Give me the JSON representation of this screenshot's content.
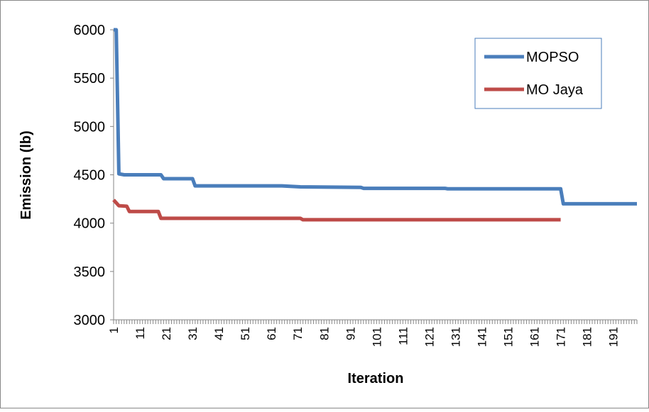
{
  "chart_data": {
    "type": "line",
    "title": "",
    "xlabel": "Iteration",
    "ylabel": "Emission (lb)",
    "ylim": [
      3000,
      6000
    ],
    "y_ticks": [
      3000,
      3500,
      4000,
      4500,
      5000,
      5500,
      6000
    ],
    "y_tick_labels": [
      "3000",
      "3500",
      "4000",
      "4500",
      "5000",
      "5500",
      "6000"
    ],
    "xlim": [
      1,
      200
    ],
    "x_tick_labels": [
      "1",
      "11",
      "21",
      "31",
      "41",
      "51",
      "61",
      "71",
      "81",
      "91",
      "101",
      "111",
      "121",
      "131",
      "141",
      "151",
      "161",
      "171",
      "181",
      "191"
    ],
    "legend": {
      "position": "top-right",
      "entries": [
        "MOPSO",
        "MO Jaya"
      ]
    },
    "grid": false,
    "series": [
      {
        "name": "MOPSO",
        "color": "#4a7ebb",
        "points": [
          [
            1,
            6000
          ],
          [
            2,
            6000
          ],
          [
            3,
            4510
          ],
          [
            5,
            4500
          ],
          [
            19,
            4500
          ],
          [
            20,
            4460
          ],
          [
            31,
            4460
          ],
          [
            32,
            4385
          ],
          [
            65,
            4385
          ],
          [
            72,
            4375
          ],
          [
            95,
            4370
          ],
          [
            96,
            4360
          ],
          [
            127,
            4360
          ],
          [
            128,
            4355
          ],
          [
            171,
            4355
          ],
          [
            172,
            4200
          ],
          [
            200,
            4200
          ]
        ]
      },
      {
        "name": "MO Jaya",
        "color": "#be4b48",
        "points": [
          [
            1,
            4240
          ],
          [
            3,
            4180
          ],
          [
            6,
            4175
          ],
          [
            7,
            4120
          ],
          [
            18,
            4120
          ],
          [
            19,
            4050
          ],
          [
            72,
            4050
          ],
          [
            73,
            4035
          ],
          [
            171,
            4035
          ]
        ]
      }
    ]
  }
}
